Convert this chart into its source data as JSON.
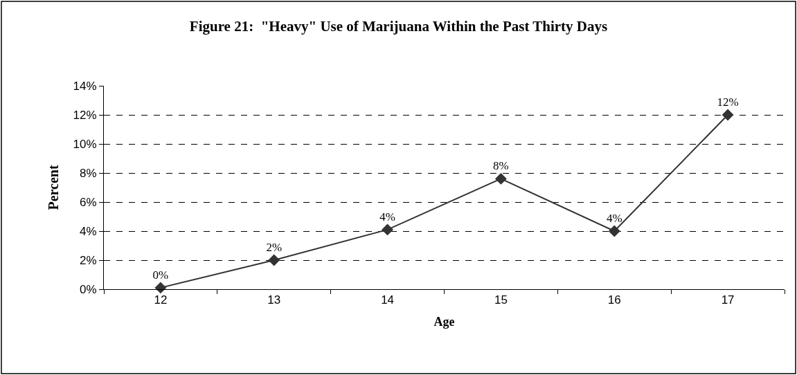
{
  "chart_data": {
    "type": "line",
    "title": "Figure 21:  \"Heavy\" Use of Marijuana Within the Past Thirty Days",
    "xlabel": "Age",
    "ylabel": "Percent",
    "categories": [
      "12",
      "13",
      "14",
      "15",
      "16",
      "17"
    ],
    "series": [
      {
        "color": "#333333",
        "values": [
          0.1,
          2.0,
          4.1,
          7.6,
          4.0,
          12.0
        ],
        "value_labels": [
          "0%",
          "2%",
          "4%",
          "8%",
          "4%",
          "12%"
        ]
      }
    ],
    "ylim": [
      0,
      14
    ],
    "yticks": [
      {
        "value": 0,
        "label": "0%"
      },
      {
        "value": 2,
        "label": "2%"
      },
      {
        "value": 4,
        "label": "4%"
      },
      {
        "value": 6,
        "label": "6%"
      },
      {
        "value": 8,
        "label": "8%"
      },
      {
        "value": 10,
        "label": "10%"
      },
      {
        "value": 12,
        "label": "12%"
      },
      {
        "value": 14,
        "label": "14%"
      }
    ],
    "grid": "y",
    "legend": false,
    "marker": "diamond",
    "line_style": "solid"
  }
}
